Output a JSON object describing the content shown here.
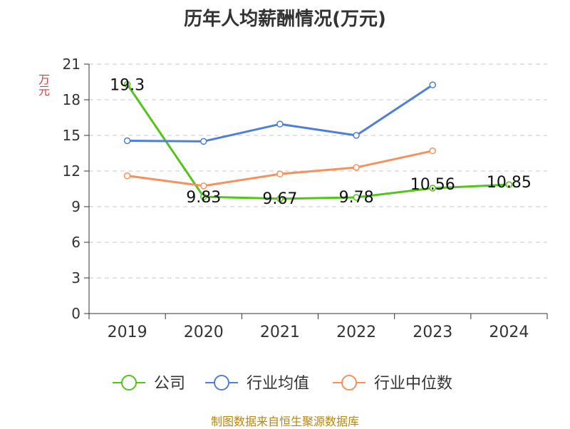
{
  "title": "历年人均薪酬情况(万元)",
  "source": "制图数据来自恒生聚源数据库",
  "chart_data": {
    "type": "line",
    "title": "历年人均薪酬情况(万元)",
    "ylabel": "万元",
    "xlabel": "",
    "categories": [
      "2019",
      "2020",
      "2021",
      "2022",
      "2023",
      "2024"
    ],
    "ylim": [
      0,
      21
    ],
    "yticks": [
      0,
      3,
      6,
      9,
      12,
      15,
      18,
      21
    ],
    "grid": true,
    "legend_position": "bottom",
    "series": [
      {
        "name": "公司",
        "color": "#52c41a",
        "values": [
          19.3,
          9.83,
          9.67,
          9.78,
          10.56,
          10.85
        ],
        "labels": [
          "19.3",
          "9.83",
          "9.67",
          "9.78",
          "10.56",
          "10.85"
        ]
      },
      {
        "name": "行业均值",
        "color": "#4f7fd8",
        "values": [
          14.55,
          14.5,
          15.95,
          15.0,
          19.25,
          null
        ]
      },
      {
        "name": "行业中位数",
        "color": "#f5915c",
        "values": [
          11.6,
          10.75,
          11.75,
          12.3,
          13.7,
          null
        ]
      }
    ]
  }
}
